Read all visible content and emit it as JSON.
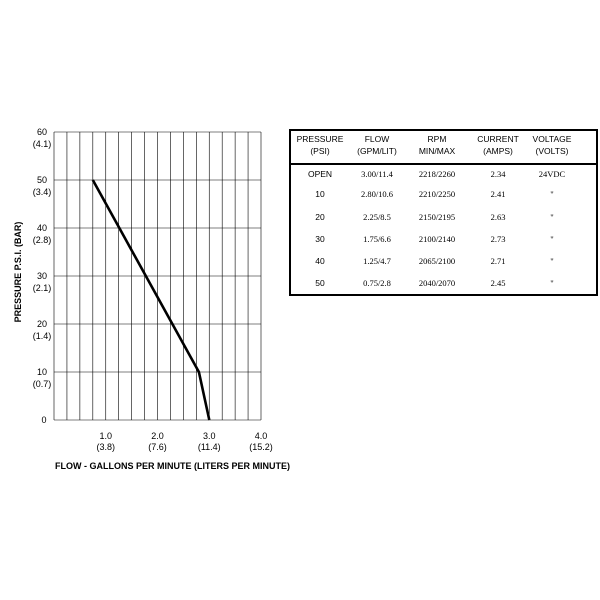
{
  "chart_data": [
    {
      "type": "line",
      "xlabel": "FLOW - GALLONS PER MINUTE  (LITERS PER MINUTE)",
      "ylabel": "PRESSURE  P.S.I.   (BAR)",
      "xlim": [
        0,
        4.0
      ],
      "ylim": [
        0,
        60
      ],
      "grid": true,
      "x_ticks": [
        {
          "value": 1.0,
          "label": "1.0",
          "sublabel": "(3.8)"
        },
        {
          "value": 2.0,
          "label": "2.0",
          "sublabel": "(7.6)"
        },
        {
          "value": 3.0,
          "label": "3.0",
          "sublabel": "(11.4)"
        },
        {
          "value": 4.0,
          "label": "4.0",
          "sublabel": "(15.2)"
        }
      ],
      "y_ticks": [
        {
          "value": 0,
          "label": "0",
          "sublabel": ""
        },
        {
          "value": 10,
          "label": "10",
          "sublabel": "(0.7)"
        },
        {
          "value": 20,
          "label": "20",
          "sublabel": "(1.4)"
        },
        {
          "value": 30,
          "label": "30",
          "sublabel": "(2.1)"
        },
        {
          "value": 40,
          "label": "40",
          "sublabel": "(2.8)"
        },
        {
          "value": 50,
          "label": "50",
          "sublabel": "(3.4)"
        },
        {
          "value": 60,
          "label": "60",
          "sublabel": "(4.1)"
        }
      ],
      "series": [
        {
          "x": [
            0.75,
            2.8,
            3.0
          ],
          "y": [
            50,
            10,
            0
          ]
        }
      ],
      "line_color": "#000000"
    },
    {
      "type": "table",
      "columns": [
        {
          "line1": "PRESSURE",
          "line2": "(PSI)"
        },
        {
          "line1": "FLOW",
          "line2": "(GPM/LIT)"
        },
        {
          "line1": "RPM",
          "line2": "MIN/MAX"
        },
        {
          "line1": "CURRENT",
          "line2": "(AMPS)"
        },
        {
          "line1": "VOLTAGE",
          "line2": "(VOLTS)"
        }
      ],
      "rows": [
        [
          "OPEN",
          "3.00/11.4",
          "2218/2260",
          "2.34",
          "24VDC"
        ],
        [
          "10",
          "2.80/10.6",
          "2210/2250",
          "2.41",
          "\""
        ],
        [
          "20",
          "2.25/8.5",
          "2150/2195",
          "2.63",
          "\""
        ],
        [
          "30",
          "1.75/6.6",
          "2100/2140",
          "2.73",
          "\""
        ],
        [
          "40",
          "1.25/4.7",
          "2065/2100",
          "2.71",
          "\""
        ],
        [
          "50",
          "0.75/2.8",
          "2040/2070",
          "2.45",
          "\""
        ]
      ]
    }
  ]
}
